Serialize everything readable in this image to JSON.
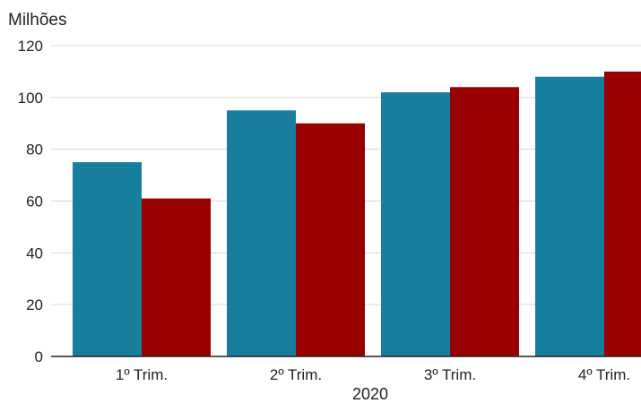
{
  "chart_data": {
    "type": "bar",
    "unit_label": "Milhões",
    "xlabel": "2020",
    "categories": [
      "1º Trim.",
      "2º Trim.",
      "3º Trim.",
      "4º Trim."
    ],
    "ylim": [
      0,
      120
    ],
    "yticks": [
      0,
      20,
      40,
      60,
      80,
      100,
      120
    ],
    "grid": true,
    "series": [
      {
        "color": "#177e9e",
        "values": [
          75,
          95,
          102,
          108
        ]
      },
      {
        "color": "#990000",
        "values": [
          61,
          90,
          104,
          110
        ]
      }
    ]
  }
}
